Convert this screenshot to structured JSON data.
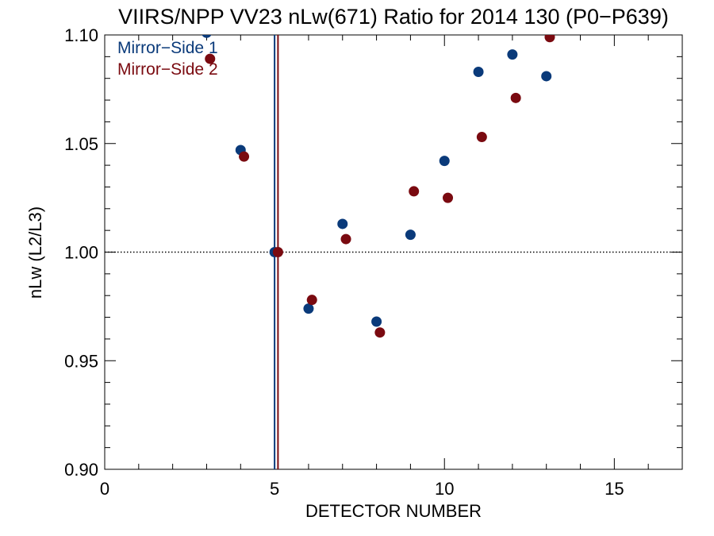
{
  "chart_data": {
    "type": "scatter",
    "title": "VIIRS/NPP VV23 nLw(671) Ratio for 2014 130 (P0−P639)",
    "xlabel": "DETECTOR NUMBER",
    "ylabel": "nLw (L2/L3)",
    "xlim": [
      0,
      17
    ],
    "ylim": [
      0.9,
      1.1
    ],
    "x_ticks": [
      0,
      5,
      10,
      15
    ],
    "x_tick_labels": [
      "0",
      "5",
      "10",
      "15"
    ],
    "y_ticks": [
      0.9,
      0.95,
      1.0,
      1.05,
      1.1
    ],
    "y_tick_labels": [
      "0.90",
      "0.95",
      "1.00",
      "1.05",
      "1.10"
    ],
    "grid": false,
    "legend_position": "top-left",
    "reference_line_y": 1.0,
    "vertical_lines_x": [
      5,
      5.1
    ],
    "series": [
      {
        "name": "Mirror−Side 1",
        "color": "#0a3a7a",
        "x": [
          3,
          4,
          5,
          6,
          7,
          8,
          9,
          10,
          11,
          12,
          13
        ],
        "y": [
          1.101,
          1.047,
          1.0,
          0.974,
          1.013,
          0.968,
          1.008,
          1.042,
          1.083,
          1.091,
          1.081
        ]
      },
      {
        "name": "Mirror−Side 2",
        "color": "#7a0a10",
        "x": [
          3.1,
          4.1,
          5.1,
          6.1,
          7.1,
          8.1,
          9.1,
          10.1,
          11.1,
          12.1,
          13.1
        ],
        "y": [
          1.089,
          1.044,
          1.0,
          0.978,
          1.006,
          0.963,
          1.028,
          1.025,
          1.053,
          1.071,
          1.099
        ]
      }
    ]
  }
}
